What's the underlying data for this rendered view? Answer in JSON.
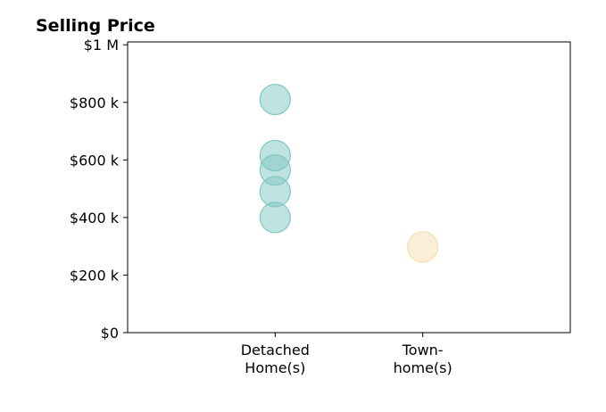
{
  "chart_data": {
    "type": "scatter",
    "title": "Selling Price",
    "xlabel": "",
    "ylabel": "",
    "categories": [
      [
        "Detached",
        "Home(s)"
      ],
      [
        "Town-",
        "home(s)"
      ]
    ],
    "y_ticks": [
      {
        "value": 0,
        "label": "$0"
      },
      {
        "value": 200000,
        "label": "$200 k"
      },
      {
        "value": 400000,
        "label": "$400 k"
      },
      {
        "value": 600000,
        "label": "$600 k"
      },
      {
        "value": 800000,
        "label": "$800 k"
      },
      {
        "value": 1000000,
        "label": "$1 M"
      }
    ],
    "ylim": [
      0,
      1010000
    ],
    "xlim": [
      -1,
      2
    ],
    "grid": false,
    "series": [
      {
        "category_index": 0,
        "color": "#80c7c1",
        "values": [
          810000,
          615000,
          565000,
          490000,
          400000
        ]
      },
      {
        "category_index": 1,
        "color": "#f5deb0",
        "values": [
          298000
        ]
      }
    ]
  }
}
